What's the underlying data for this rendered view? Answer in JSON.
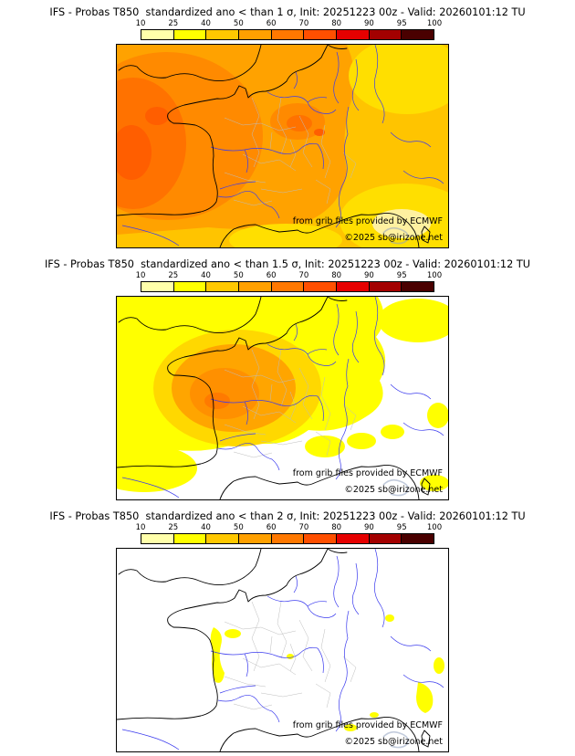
{
  "page": {
    "background": "#ffffff"
  },
  "colorbar": {
    "tick_labels": [
      "10",
      "25",
      "40",
      "50",
      "60",
      "70",
      "80",
      "90",
      "95",
      "100"
    ],
    "segment_colors": [
      "#ffffaa",
      "#ffff00",
      "#ffc800",
      "#ffa000",
      "#ff7800",
      "#ff4f00",
      "#e60000",
      "#a30000",
      "#4a0000"
    ]
  },
  "panels": [
    {
      "title": "IFS - Probas T850  standardized ano < than 1 σ, Init: 20251223 00z - Valid: 20260101:12 TU",
      "attribution": "from grib files provided by ECMWF",
      "copyright": "©2025 sb@irizone.net"
    },
    {
      "title": "IFS - Probas T850  standardized ano < than 1.5 σ, Init: 20251223 00z - Valid: 20260101:12 TU",
      "attribution": "from grib files provided by ECMWF",
      "copyright": "©2025 sb@irizone.net"
    },
    {
      "title": "IFS - Probas T850  standardized ano < than 2 σ, Init: 20251223 00z - Valid: 20260101:12 TU",
      "attribution": "from grib files provided by ECMWF",
      "copyright": "©2025 sb@irizone.net"
    }
  ]
}
